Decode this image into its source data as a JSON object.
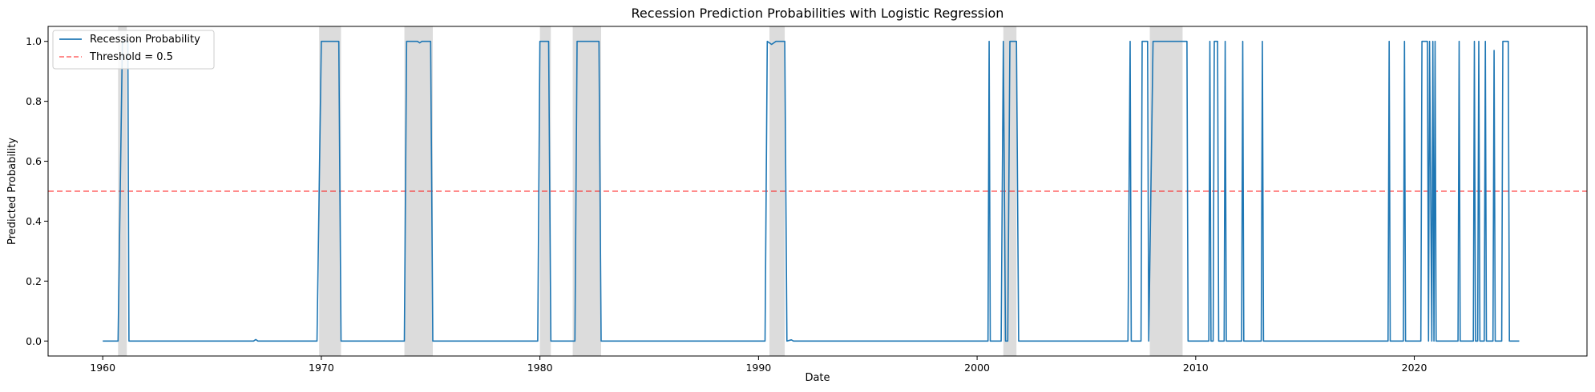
{
  "chart_data": {
    "type": "line",
    "title": "Recession Prediction Probabilities with Logistic Regression",
    "xlabel": "Date",
    "ylabel": "Predicted Probability",
    "xlim": [
      1957.5,
      2027.9
    ],
    "ylim": [
      -0.05,
      1.05
    ],
    "xticks": [
      1960,
      1970,
      1980,
      1990,
      2000,
      2010,
      2020
    ],
    "yticks": [
      0.0,
      0.2,
      0.4,
      0.6,
      0.8,
      1.0
    ],
    "ytick_labels": [
      "0.0",
      "0.2",
      "0.4",
      "0.6",
      "0.8",
      "1.0"
    ],
    "grid": false,
    "legend_position": "upper-left",
    "colors": {
      "line": "#1f77b4",
      "threshold": "#ff0000",
      "recession_shade": "#dcdcdc"
    },
    "recession_periods": [
      [
        1960.7,
        1961.1
      ],
      [
        1969.9,
        1970.9
      ],
      [
        1973.8,
        1975.1
      ],
      [
        1980.0,
        1980.5
      ],
      [
        1981.5,
        1982.8
      ],
      [
        1990.5,
        1991.2
      ],
      [
        2001.2,
        2001.8
      ],
      [
        2007.9,
        2009.4
      ]
    ],
    "threshold": {
      "name": "Threshold = 0.5",
      "value": 0.5
    },
    "series": [
      {
        "name": "Recession Probability",
        "x": [
          1960.0,
          1960.7,
          1960.9,
          1961.15,
          1961.2,
          1966.9,
          1967.0,
          1967.1,
          1969.8,
          1970.0,
          1970.8,
          1970.9,
          1973.8,
          1973.9,
          1974.4,
          1974.5,
          1974.6,
          1975.0,
          1975.1,
          1979.9,
          1980.0,
          1980.4,
          1980.5,
          1981.6,
          1981.7,
          1982.7,
          1982.8,
          1990.3,
          1990.4,
          1990.6,
          1990.8,
          1991.2,
          1991.3,
          1991.5,
          1991.6,
          2000.5,
          2000.55,
          2000.6,
          2001.1,
          2001.2,
          2001.3,
          2001.4,
          2001.5,
          2001.6,
          2001.8,
          2001.9,
          2006.9,
          2007.0,
          2007.05,
          2007.5,
          2007.55,
          2007.8,
          2007.85,
          2008.05,
          2009.6,
          2009.65,
          2010.6,
          2010.65,
          2010.7,
          2010.8,
          2010.85,
          2011.0,
          2011.05,
          2011.3,
          2011.35,
          2011.4,
          2012.1,
          2012.15,
          2012.2,
          2013.0,
          2013.05,
          2013.1,
          2018.8,
          2018.85,
          2018.9,
          2019.5,
          2019.55,
          2019.6,
          2020.3,
          2020.35,
          2020.6,
          2020.65,
          2020.7,
          2020.8,
          2020.85,
          2020.9,
          2020.95,
          2021.0,
          2021.1,
          2022.0,
          2022.05,
          2022.1,
          2022.7,
          2022.75,
          2022.8,
          2022.9,
          2022.95,
          2023.0,
          2023.2,
          2023.25,
          2023.3,
          2023.6,
          2023.65,
          2023.7,
          2024.0,
          2024.05,
          2024.3,
          2024.35,
          2024.8
        ],
        "y": [
          0.0,
          0.0,
          1.0,
          1.0,
          0.0,
          0.0,
          0.005,
          0.0,
          0.0,
          1.0,
          1.0,
          0.0,
          0.0,
          1.0,
          1.0,
          0.995,
          1.0,
          1.0,
          0.0,
          0.0,
          1.0,
          1.0,
          0.0,
          0.0,
          1.0,
          1.0,
          0.0,
          0.0,
          1.0,
          0.99,
          1.0,
          1.0,
          0.0,
          0.004,
          0.0,
          0.0,
          1.0,
          0.0,
          0.0,
          1.0,
          0.0,
          0.0,
          1.0,
          1.0,
          1.0,
          0.0,
          0.0,
          1.0,
          0.0,
          0.0,
          1.0,
          1.0,
          0.0,
          1.0,
          1.0,
          0.0,
          0.0,
          1.0,
          0.0,
          0.0,
          1.0,
          1.0,
          0.0,
          0.0,
          1.0,
          0.0,
          0.0,
          1.0,
          0.0,
          0.0,
          1.0,
          0.0,
          0.0,
          1.0,
          0.0,
          0.0,
          1.0,
          0.0,
          0.0,
          1.0,
          1.0,
          0.0,
          1.0,
          0.0,
          1.0,
          0.0,
          1.0,
          0.0,
          0.0,
          0.0,
          1.0,
          0.0,
          0.0,
          1.0,
          0.0,
          0.0,
          1.0,
          0.0,
          0.0,
          1.0,
          0.0,
          0.0,
          0.97,
          0.0,
          0.0,
          1.0,
          1.0,
          0.0,
          0.0
        ]
      }
    ]
  }
}
